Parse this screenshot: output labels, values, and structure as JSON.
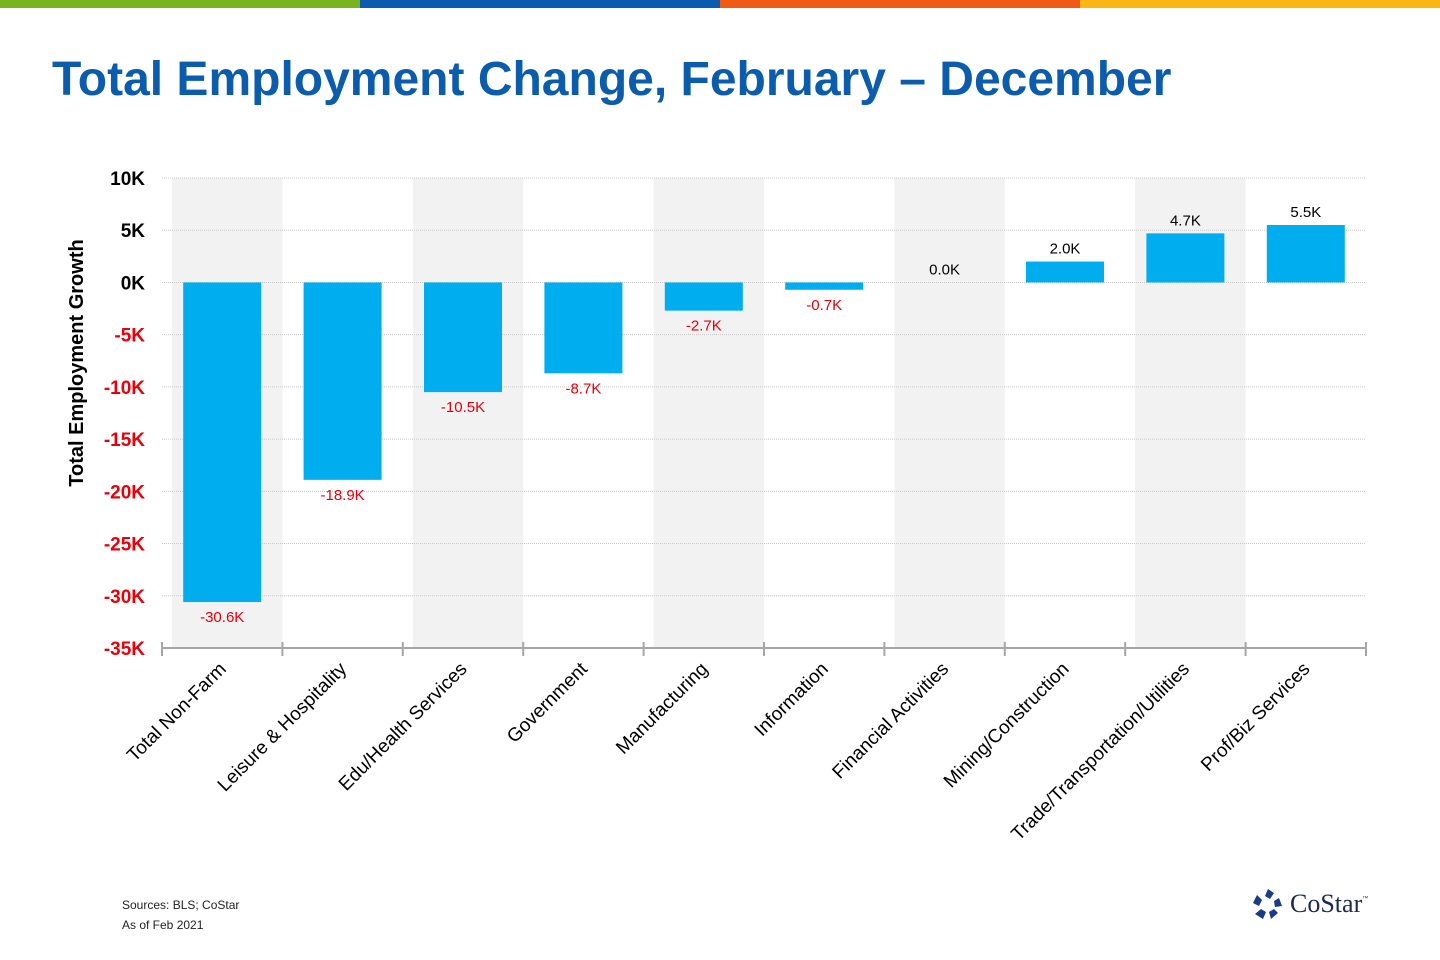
{
  "header": {
    "title": "Total Employment Change, February – December"
  },
  "stripes": [
    "#78b41e",
    "#0b5cad",
    "#f05a14",
    "#fbb514"
  ],
  "colors": {
    "bar": "#00aeef",
    "negative": "#e8000b",
    "positive": "#000000",
    "band": "#f2f2f2"
  },
  "chart_data": {
    "type": "bar",
    "title": "Total Employment Change, February – December",
    "xlabel": "",
    "ylabel": "Total Employment Growth",
    "ylim": [
      -35,
      10
    ],
    "yticks": [
      10,
      5,
      0,
      -5,
      -10,
      -15,
      -20,
      -25,
      -30,
      -35
    ],
    "ytick_labels": [
      "10K",
      "5K",
      "0K",
      "-5K",
      "-10K",
      "-15K",
      "-20K",
      "-25K",
      "-30K",
      "-35K"
    ],
    "unit": "K",
    "grid": true,
    "categories": [
      "Total Non-Farm",
      "Leisure & Hospitality",
      "Edu/Health Services",
      "Government",
      "Manufacturing",
      "Information",
      "Financial Activities",
      "Mining/Construction",
      "Trade/Transportation/Utilities",
      "Prof/Biz Services"
    ],
    "values": [
      -30.6,
      -18.9,
      -10.5,
      -8.7,
      -2.7,
      -0.7,
      0.0,
      2.0,
      4.7,
      5.5
    ],
    "data_labels": [
      "-30.6K",
      "-18.9K",
      "-10.5K",
      "-8.7K",
      "-2.7K",
      "-0.7K",
      "0.0K",
      "2.0K",
      "4.7K",
      "5.5K"
    ]
  },
  "footer": {
    "sources": "Sources: BLS; CoStar",
    "as_of": "As of Feb 2021",
    "logo": "CoStar"
  }
}
